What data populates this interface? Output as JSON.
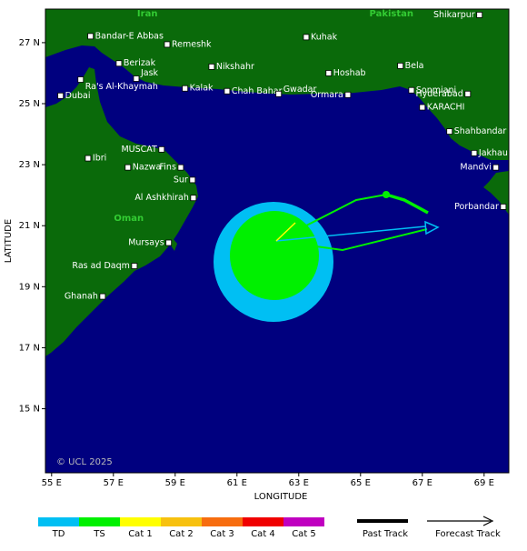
{
  "map": {
    "xlabel": "LONGITUDE",
    "ylabel": "LATITUDE",
    "xlim": [
      54.8,
      69.8
    ],
    "ylim": [
      12.9,
      28.1
    ],
    "xticks": [
      {
        "value": 55,
        "label": "55 E"
      },
      {
        "value": 57,
        "label": "57 E"
      },
      {
        "value": 59,
        "label": "59 E"
      },
      {
        "value": 61,
        "label": "61 E"
      },
      {
        "value": 63,
        "label": "63 E"
      },
      {
        "value": 65,
        "label": "65 E"
      },
      {
        "value": 67,
        "label": "67 E"
      },
      {
        "value": 69,
        "label": "69 E"
      }
    ],
    "yticks": [
      {
        "value": 15,
        "label": "15 N"
      },
      {
        "value": 17,
        "label": "17 N"
      },
      {
        "value": 19,
        "label": "19 N"
      },
      {
        "value": 21,
        "label": "21 N"
      },
      {
        "value": 23,
        "label": "23 N"
      },
      {
        "value": 25,
        "label": "25 N"
      },
      {
        "value": 27,
        "label": "27 N"
      }
    ],
    "regions": [
      {
        "label": "Iran",
        "lon": 58.1,
        "lat": 27.95
      },
      {
        "label": "Pakistan",
        "lon": 66.0,
        "lat": 27.95
      },
      {
        "label": "Oman",
        "lon": 57.5,
        "lat": 21.25
      }
    ],
    "places": [
      {
        "label": "Bandar-E Abbas",
        "lon": 56.26,
        "lat": 27.21
      },
      {
        "label": "Remeshk",
        "lon": 58.74,
        "lat": 26.94
      },
      {
        "label": "Kuhak",
        "lon": 63.24,
        "lat": 27.18
      },
      {
        "label": "Shikarpur",
        "lon": 68.85,
        "lat": 27.91
      },
      {
        "label": "Berizak",
        "lon": 57.18,
        "lat": 26.32
      },
      {
        "label": "Jask",
        "lon": 57.74,
        "lat": 25.82
      },
      {
        "label": "Nikshahr",
        "lon": 60.18,
        "lat": 26.21
      },
      {
        "label": "Hoshab",
        "lon": 63.97,
        "lat": 26.0
      },
      {
        "label": "Bela",
        "lon": 66.29,
        "lat": 26.24
      },
      {
        "label": "Ra's Al-Khaymah",
        "lon": 55.94,
        "lat": 25.79
      },
      {
        "label": "Kalak",
        "lon": 59.32,
        "lat": 25.5
      },
      {
        "label": "Chah Bahar",
        "lon": 60.68,
        "lat": 25.41
      },
      {
        "label": "Gwadar",
        "lon": 62.35,
        "lat": 25.32
      },
      {
        "label": "Ormara",
        "lon": 64.59,
        "lat": 25.29
      },
      {
        "label": "Sonmiani",
        "lon": 66.65,
        "lat": 25.44
      },
      {
        "label": "Hyderabad",
        "lon": 68.47,
        "lat": 25.32
      },
      {
        "label": "KARACHI",
        "lon": 67.0,
        "lat": 24.88
      },
      {
        "label": "Dubai",
        "lon": 55.29,
        "lat": 25.26
      },
      {
        "label": "Shahbandar",
        "lon": 67.88,
        "lat": 24.09
      },
      {
        "label": "MUSCAT",
        "lon": 58.56,
        "lat": 23.5
      },
      {
        "label": "Jakhau",
        "lon": 68.68,
        "lat": 23.38
      },
      {
        "label": "Ibri",
        "lon": 56.18,
        "lat": 23.21
      },
      {
        "label": "Nazwa",
        "lon": 57.47,
        "lat": 22.91
      },
      {
        "label": "Fins",
        "lon": 59.18,
        "lat": 22.91
      },
      {
        "label": "Mandvi",
        "lon": 69.38,
        "lat": 22.91
      },
      {
        "label": "Sur",
        "lon": 59.56,
        "lat": 22.5
      },
      {
        "label": "Al Ashkhirah",
        "lon": 59.59,
        "lat": 21.91
      },
      {
        "label": "Porbandar",
        "lon": 69.62,
        "lat": 21.62
      },
      {
        "label": "Mursays",
        "lon": 58.79,
        "lat": 20.44
      },
      {
        "label": "Ras ad Daqm",
        "lon": 57.68,
        "lat": 19.68
      },
      {
        "label": "Ghanah",
        "lon": 56.65,
        "lat": 18.68
      }
    ],
    "copyright": "© UCL 2025"
  },
  "legend": {
    "intensity": [
      {
        "label": "TD",
        "color": "#00bff3"
      },
      {
        "label": "TS",
        "color": "#00f000"
      },
      {
        "label": "Cat 1",
        "color": "#ffff00"
      },
      {
        "label": "Cat 2",
        "color": "#f7c10f"
      },
      {
        "label": "Cat 3",
        "color": "#f76d0f"
      },
      {
        "label": "Cat 4",
        "color": "#f00000"
      },
      {
        "label": "Cat 5",
        "color": "#c000c0"
      }
    ],
    "past_track": "Past Track",
    "forecast_track": "Forecast Track"
  }
}
